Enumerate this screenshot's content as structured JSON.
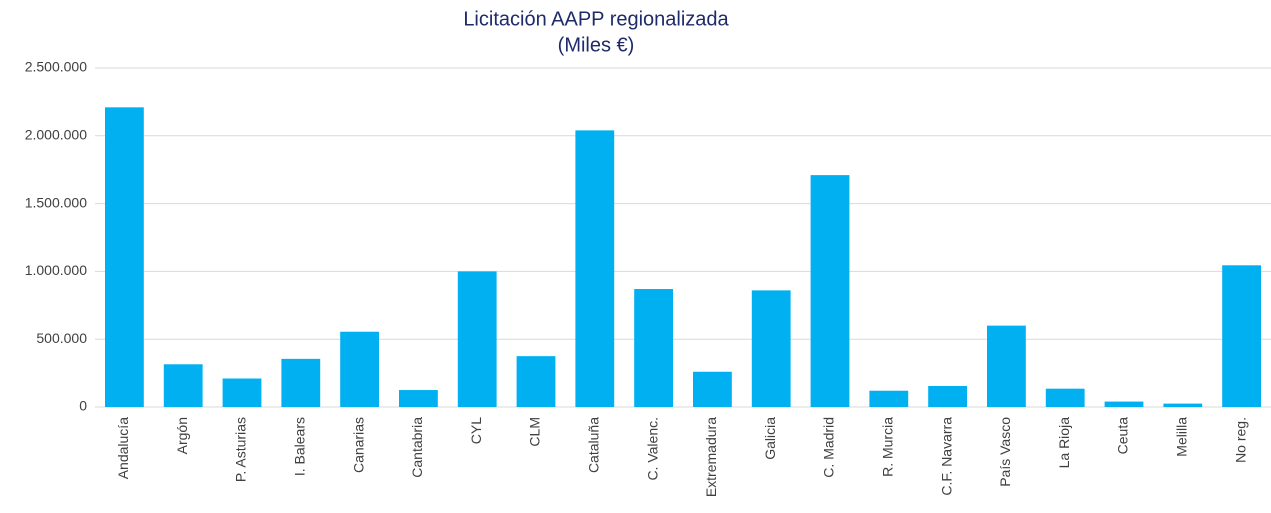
{
  "chart_data": {
    "type": "bar",
    "title": "Licitación AAPP regionalizada",
    "subtitle": "(Miles €)",
    "categories": [
      "Andalucía",
      "Argón",
      "P. Asturias",
      "I. Balears",
      "Canarias",
      "Cantabria",
      "CYL",
      "CLM",
      "Cataluña",
      "C. Valenc.",
      "Extremadura",
      "Galicia",
      "C. Madrid",
      "R. Murcia",
      "C.F. Navarra",
      "País Vasco",
      "La Rioja",
      "Ceuta",
      "Melilla",
      "No reg."
    ],
    "values": [
      2210000,
      315000,
      210000,
      355000,
      555000,
      125000,
      1000000,
      375000,
      2040000,
      870000,
      260000,
      860000,
      1710000,
      120000,
      155000,
      600000,
      135000,
      40000,
      25000,
      1045000
    ],
    "color": "#00b0f0",
    "ylim": [
      0,
      2500000
    ],
    "yticks": [
      0,
      {
        "value": 500000,
        "label": "500.000"
      },
      {
        "value": 1000000,
        "label": "1.000.000"
      },
      {
        "value": 1500000,
        "label": "1.500.000"
      },
      {
        "value": 2000000,
        "label": "2.000.000"
      },
      {
        "value": 2500000,
        "label": "2.500.000"
      }
    ],
    "grid": true
  }
}
